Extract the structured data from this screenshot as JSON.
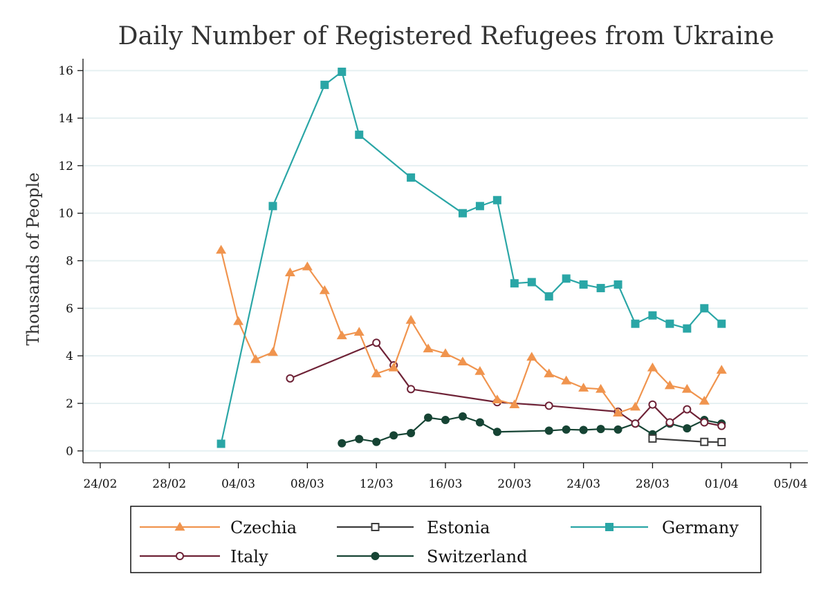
{
  "chart_data": {
    "type": "line",
    "title": "Daily Number of Registered Refugees from Ukraine",
    "xlabel": "",
    "ylabel": "Thousands of People",
    "x_type": "date",
    "year": 2022,
    "xlim": [
      "2022-02-23",
      "2022-04-06"
    ],
    "ylim": [
      -0.5,
      16.5
    ],
    "x_ticks": [
      "24/02",
      "28/02",
      "04/03",
      "08/03",
      "12/03",
      "16/03",
      "20/03",
      "24/03",
      "28/03",
      "01/04",
      "05/04"
    ],
    "y_ticks": [
      0,
      2,
      4,
      6,
      8,
      10,
      12,
      14,
      16
    ],
    "grid": true,
    "legend_position": "bottom",
    "series": [
      {
        "name": "Czechia",
        "color": "#f0944e",
        "marker": "triangle",
        "points": [
          [
            "03/03",
            8.45
          ],
          [
            "04/03",
            5.45
          ],
          [
            "05/03",
            3.85
          ],
          [
            "06/03",
            4.15
          ],
          [
            "07/03",
            7.5
          ],
          [
            "08/03",
            7.75
          ],
          [
            "09/03",
            6.75
          ],
          [
            "10/03",
            4.85
          ],
          [
            "11/03",
            5.0
          ],
          [
            "12/03",
            3.25
          ],
          [
            "13/03",
            3.5
          ],
          [
            "14/03",
            5.5
          ],
          [
            "15/03",
            4.3
          ],
          [
            "16/03",
            4.1
          ],
          [
            "17/03",
            3.75
          ],
          [
            "18/03",
            3.35
          ],
          [
            "19/03",
            2.15
          ],
          [
            "20/03",
            1.95
          ],
          [
            "21/03",
            3.95
          ],
          [
            "22/03",
            3.25
          ],
          [
            "23/03",
            2.95
          ],
          [
            "24/03",
            2.65
          ],
          [
            "25/03",
            2.6
          ],
          [
            "26/03",
            1.6
          ],
          [
            "27/03",
            1.85
          ],
          [
            "28/03",
            3.5
          ],
          [
            "29/03",
            2.75
          ],
          [
            "30/03",
            2.6
          ],
          [
            "31/03",
            2.1
          ],
          [
            "01/04",
            3.4
          ]
        ]
      },
      {
        "name": "Estonia",
        "color": "#3c3c3c",
        "marker": "square-open",
        "points": [
          [
            "28/03",
            0.52
          ],
          [
            "31/03",
            0.38
          ],
          [
            "01/04",
            0.37
          ]
        ]
      },
      {
        "name": "Germany",
        "color": "#2aa6a6",
        "marker": "square",
        "points": [
          [
            "03/03",
            0.3
          ],
          [
            "06/03",
            10.3
          ],
          [
            "09/03",
            15.4
          ],
          [
            "10/03",
            15.95
          ],
          [
            "11/03",
            13.3
          ],
          [
            "14/03",
            11.5
          ],
          [
            "17/03",
            10.0
          ],
          [
            "18/03",
            10.3
          ],
          [
            "19/03",
            10.55
          ],
          [
            "20/03",
            7.05
          ],
          [
            "21/03",
            7.1
          ],
          [
            "22/03",
            6.5
          ],
          [
            "23/03",
            7.25
          ],
          [
            "24/03",
            7.0
          ],
          [
            "25/03",
            6.85
          ],
          [
            "26/03",
            7.0
          ],
          [
            "27/03",
            5.35
          ],
          [
            "28/03",
            5.7
          ],
          [
            "29/03",
            5.35
          ],
          [
            "30/03",
            5.15
          ],
          [
            "31/03",
            6.0
          ],
          [
            "01/04",
            5.35
          ]
        ]
      },
      {
        "name": "Italy",
        "color": "#6e2236",
        "marker": "circle-open",
        "points": [
          [
            "07/03",
            3.05
          ],
          [
            "12/03",
            4.55
          ],
          [
            "13/03",
            3.6
          ],
          [
            "14/03",
            2.6
          ],
          [
            "19/03",
            2.05
          ],
          [
            "22/03",
            1.9
          ],
          [
            "26/03",
            1.65
          ],
          [
            "27/03",
            1.15
          ],
          [
            "28/03",
            1.95
          ],
          [
            "29/03",
            1.2
          ],
          [
            "30/03",
            1.75
          ],
          [
            "31/03",
            1.2
          ],
          [
            "01/04",
            1.05
          ]
        ]
      },
      {
        "name": "Switzerland",
        "color": "#164434",
        "marker": "circle",
        "points": [
          [
            "10/03",
            0.32
          ],
          [
            "11/03",
            0.5
          ],
          [
            "12/03",
            0.38
          ],
          [
            "13/03",
            0.65
          ],
          [
            "14/03",
            0.75
          ],
          [
            "15/03",
            1.4
          ],
          [
            "16/03",
            1.3
          ],
          [
            "17/03",
            1.45
          ],
          [
            "18/03",
            1.2
          ],
          [
            "19/03",
            0.8
          ],
          [
            "22/03",
            0.85
          ],
          [
            "23/03",
            0.9
          ],
          [
            "24/03",
            0.88
          ],
          [
            "25/03",
            0.92
          ],
          [
            "26/03",
            0.9
          ],
          [
            "27/03",
            1.15
          ],
          [
            "28/03",
            0.7
          ],
          [
            "29/03",
            1.15
          ],
          [
            "30/03",
            0.95
          ],
          [
            "31/03",
            1.3
          ],
          [
            "01/04",
            1.15
          ]
        ]
      }
    ],
    "legend_order": [
      "Czechia",
      "Estonia",
      "Germany",
      "Italy",
      "Switzerland"
    ]
  }
}
